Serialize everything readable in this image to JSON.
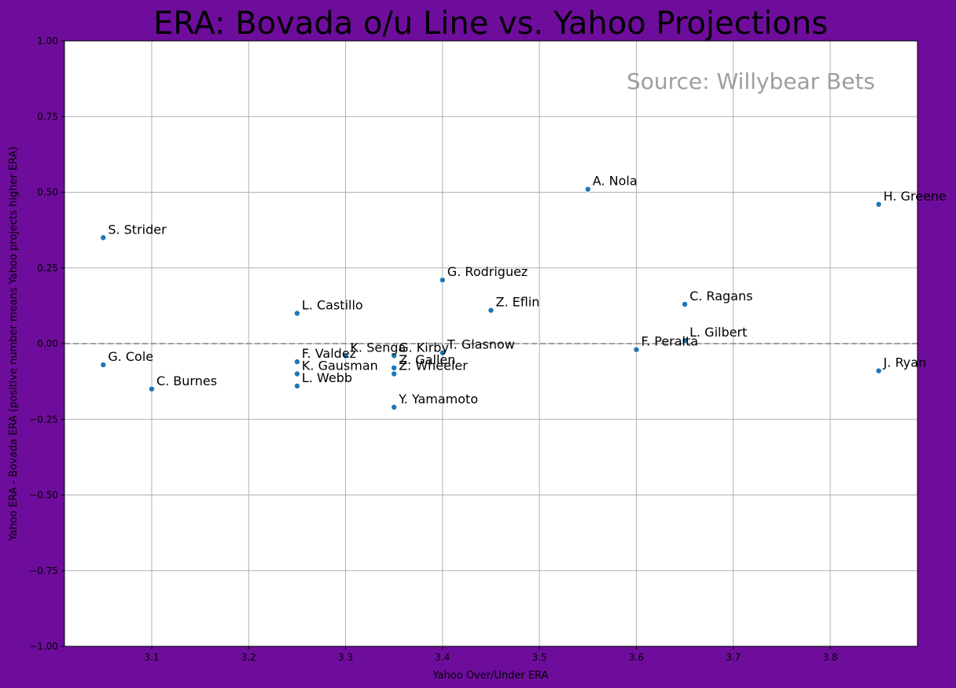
{
  "chart_data": {
    "type": "scatter",
    "title": "ERA: Bovada o/u Line vs. Yahoo Projections",
    "xlabel": "Yahoo Over/Under ERA",
    "ylabel": "Yahoo ERA - Bovada ERA (positive number means Yahoo projects higher ERA)",
    "annotation": "Source: Willybear Bets",
    "xlim": [
      3.01,
      3.89
    ],
    "ylim": [
      -1.0,
      1.0
    ],
    "xticks": [
      "3.1",
      "3.2",
      "3.3",
      "3.4",
      "3.5",
      "3.6",
      "3.7",
      "3.8"
    ],
    "yticks": [
      "1.00",
      "0.75",
      "0.50",
      "0.25",
      "0.00",
      "−0.25",
      "−0.50",
      "−0.75",
      "−1.00"
    ],
    "grid": true,
    "reference_line_y": 0,
    "point_color": "#1f77b4",
    "points": [
      {
        "label": "S. Strider",
        "x": 3.05,
        "y": 0.35
      },
      {
        "label": "G. Cole",
        "x": 3.05,
        "y": -0.07
      },
      {
        "label": "C. Burnes",
        "x": 3.1,
        "y": -0.15
      },
      {
        "label": "L. Castillo",
        "x": 3.25,
        "y": 0.1
      },
      {
        "label": "F. Valdez",
        "x": 3.25,
        "y": -0.06
      },
      {
        "label": "K. Gausman",
        "x": 3.25,
        "y": -0.1
      },
      {
        "label": "L. Webb",
        "x": 3.25,
        "y": -0.14
      },
      {
        "label": "K. Senga",
        "x": 3.3,
        "y": -0.04
      },
      {
        "label": "G. Kirby",
        "x": 3.35,
        "y": -0.04
      },
      {
        "label": "Z. Gallen",
        "x": 3.35,
        "y": -0.08
      },
      {
        "label": "Z. Wheeler",
        "x": 3.35,
        "y": -0.1
      },
      {
        "label": "Y. Yamamoto",
        "x": 3.35,
        "y": -0.21
      },
      {
        "label": "G. Rodriguez",
        "x": 3.4,
        "y": 0.21
      },
      {
        "label": "T. Glasnow",
        "x": 3.4,
        "y": -0.03
      },
      {
        "label": "Z. Eflin",
        "x": 3.45,
        "y": 0.11
      },
      {
        "label": "A. Nola",
        "x": 3.55,
        "y": 0.51
      },
      {
        "label": "F. Peralta",
        "x": 3.6,
        "y": -0.02
      },
      {
        "label": "C. Ragans",
        "x": 3.65,
        "y": 0.13
      },
      {
        "label": "L. Gilbert",
        "x": 3.65,
        "y": 0.01
      },
      {
        "label": "H. Greene",
        "x": 3.85,
        "y": 0.46
      },
      {
        "label": "J. Ryan",
        "x": 3.85,
        "y": -0.09
      }
    ]
  }
}
